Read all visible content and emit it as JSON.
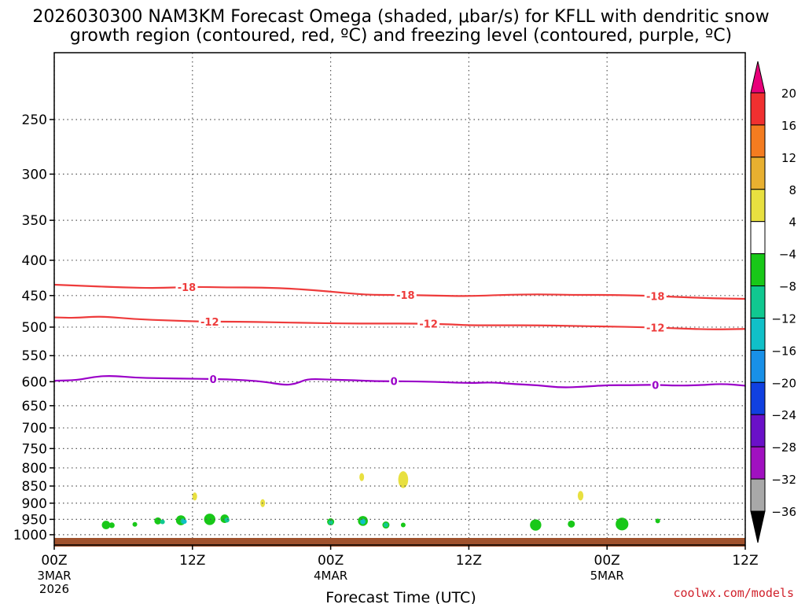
{
  "title": {
    "line1": "2026030300 NAM3KM Forecast Omega (shaded, μbar/s) for KFLL with dendritic snow",
    "line2": "growth region (contoured, red, ºC) and freezing level (contoured, purple, ºC)"
  },
  "credit": "coolwx.com/models",
  "colors": {
    "snow_growth_contour": "#ee3b3b",
    "freezing_level_contour": "#9a00c8",
    "ground": "#a0522d",
    "grid": "#555555"
  },
  "chart_data": {
    "type": "heatmap",
    "title": "2026030300 NAM3KM Forecast Omega (shaded, μbar/s) for KFLL with dendritic snow growth region (contoured, red, ºC) and freezing level (contoured, purple, ºC)",
    "xlabel": "Forecast Time (UTC)",
    "ylabel": "",
    "x_unit": "forecast hour",
    "x_range": [
      0,
      60
    ],
    "x_ticks": [
      {
        "hour": 0,
        "label": "00Z",
        "sub": [
          "3MAR",
          "2026"
        ]
      },
      {
        "hour": 12,
        "label": "12Z",
        "sub": []
      },
      {
        "hour": 24,
        "label": "00Z",
        "sub": [
          "4MAR"
        ]
      },
      {
        "hour": 36,
        "label": "12Z",
        "sub": []
      },
      {
        "hour": 48,
        "label": "00Z",
        "sub": [
          "5MAR"
        ]
      },
      {
        "hour": 60,
        "label": "12Z",
        "sub": []
      }
    ],
    "y_unit": "hPa",
    "y_scale": "log",
    "y_range": [
      1035,
      200
    ],
    "y_ticks": [
      250,
      300,
      350,
      400,
      450,
      500,
      550,
      600,
      650,
      700,
      750,
      800,
      850,
      900,
      950,
      1000
    ],
    "grid": true,
    "colorbar": {
      "unit": "μbar/s",
      "labels": [
        20,
        16,
        12,
        8,
        4,
        -4,
        -8,
        -12,
        -16,
        -20,
        -24,
        -28,
        -32,
        -36
      ],
      "bins": [
        {
          "range": [
            20,
            null
          ],
          "color": "#e8007a"
        },
        {
          "range": [
            16,
            20
          ],
          "color": "#f03030"
        },
        {
          "range": [
            12,
            16
          ],
          "color": "#f47c20"
        },
        {
          "range": [
            8,
            12
          ],
          "color": "#e8b030"
        },
        {
          "range": [
            4,
            8
          ],
          "color": "#e8e040"
        },
        {
          "range": [
            -4,
            4
          ],
          "color": "#ffffff"
        },
        {
          "range": [
            -8,
            -4
          ],
          "color": "#18c818"
        },
        {
          "range": [
            -12,
            -8
          ],
          "color": "#10c890"
        },
        {
          "range": [
            -16,
            -12
          ],
          "color": "#10c0c8"
        },
        {
          "range": [
            -20,
            -16
          ],
          "color": "#1890e8"
        },
        {
          "range": [
            -24,
            -20
          ],
          "color": "#1040e0"
        },
        {
          "range": [
            -28,
            -24
          ],
          "color": "#6a10c8"
        },
        {
          "range": [
            -32,
            -28
          ],
          "color": "#a010c0"
        },
        {
          "range": [
            -36,
            -32
          ],
          "color": "#a8a8a8"
        },
        {
          "range": [
            null,
            -36
          ],
          "color": "#000000"
        }
      ]
    },
    "contours": [
      {
        "name": "-18",
        "label": "-18",
        "color": "#ee3b3b",
        "label_hours": [
          11.5,
          30.5,
          52.2
        ],
        "points": [
          [
            0,
            434
          ],
          [
            3,
            436
          ],
          [
            6,
            438
          ],
          [
            9,
            439
          ],
          [
            12,
            437
          ],
          [
            15,
            438
          ],
          [
            18,
            438
          ],
          [
            21,
            440
          ],
          [
            24,
            444
          ],
          [
            27,
            449
          ],
          [
            30,
            449
          ],
          [
            33,
            450
          ],
          [
            36,
            451
          ],
          [
            39,
            449
          ],
          [
            42,
            448
          ],
          [
            45,
            449
          ],
          [
            48,
            449
          ],
          [
            51,
            450
          ],
          [
            54,
            452
          ],
          [
            57,
            454
          ],
          [
            60,
            455
          ]
        ]
      },
      {
        "name": "-12",
        "label": "-12",
        "color": "#ee3b3b",
        "label_hours": [
          13.5,
          32.5,
          52.2
        ],
        "points": [
          [
            0,
            484
          ],
          [
            2,
            485
          ],
          [
            4,
            482
          ],
          [
            7,
            487
          ],
          [
            10,
            489
          ],
          [
            13,
            491
          ],
          [
            16,
            491
          ],
          [
            19,
            492
          ],
          [
            22,
            493
          ],
          [
            25,
            494
          ],
          [
            28,
            494
          ],
          [
            31,
            494
          ],
          [
            34,
            495
          ],
          [
            36,
            497
          ],
          [
            39,
            497
          ],
          [
            42,
            497
          ],
          [
            45,
            498
          ],
          [
            48,
            499
          ],
          [
            51,
            500
          ],
          [
            54,
            502
          ],
          [
            57,
            504
          ],
          [
            60,
            503
          ]
        ]
      },
      {
        "name": "0",
        "label": "0",
        "color": "#9a00c8",
        "label_hours": [
          13.8,
          29.5,
          52.2
        ],
        "points": [
          [
            0,
            598
          ],
          [
            2,
            597
          ],
          [
            3.5,
            590
          ],
          [
            5,
            588
          ],
          [
            7,
            592
          ],
          [
            9,
            593
          ],
          [
            12,
            594
          ],
          [
            15,
            595
          ],
          [
            18,
            599
          ],
          [
            20,
            607
          ],
          [
            21,
            604
          ],
          [
            22,
            594
          ],
          [
            24,
            596
          ],
          [
            26,
            597
          ],
          [
            28,
            599
          ],
          [
            30,
            599
          ],
          [
            33,
            600
          ],
          [
            36,
            603
          ],
          [
            38,
            601
          ],
          [
            40,
            605
          ],
          [
            42,
            607
          ],
          [
            44,
            612
          ],
          [
            46,
            610
          ],
          [
            48,
            607
          ],
          [
            50,
            607
          ],
          [
            52,
            606
          ],
          [
            54,
            608
          ],
          [
            56,
            607
          ],
          [
            58,
            604
          ],
          [
            60,
            608
          ]
        ]
      }
    ],
    "omega_cells": [
      {
        "hour": 4.5,
        "p": 968,
        "dh": 0.6,
        "value": -6
      },
      {
        "hour": 5.0,
        "p": 969,
        "dh": 0.4,
        "value": -6
      },
      {
        "hour": 7.0,
        "p": 966,
        "dh": 0.3,
        "value": -6
      },
      {
        "hour": 9.0,
        "p": 955,
        "dh": 0.5,
        "value": -6
      },
      {
        "hour": 9.4,
        "p": 958,
        "dh": 0.3,
        "value": -10
      },
      {
        "hour": 11.0,
        "p": 953,
        "dh": 0.7,
        "value": -6
      },
      {
        "hour": 11.2,
        "p": 956,
        "dh": 0.4,
        "value": -10
      },
      {
        "hour": 11.3,
        "p": 957,
        "dh": 0.25,
        "value": -14
      },
      {
        "hour": 12.2,
        "p": 880,
        "dh": 0.3,
        "value": 6
      },
      {
        "hour": 13.5,
        "p": 950,
        "dh": 0.8,
        "value": -6
      },
      {
        "hour": 14.8,
        "p": 948,
        "dh": 0.6,
        "value": -6
      },
      {
        "hour": 15.0,
        "p": 952,
        "dh": 0.35,
        "value": -10
      },
      {
        "hour": 18.1,
        "p": 900,
        "dh": 0.3,
        "value": 6
      },
      {
        "hour": 24.0,
        "p": 958,
        "dh": 0.5,
        "value": -6
      },
      {
        "hour": 24.0,
        "p": 960,
        "dh": 0.25,
        "value": -10
      },
      {
        "hour": 26.7,
        "p": 825,
        "dh": 0.3,
        "value": 6
      },
      {
        "hour": 26.8,
        "p": 955,
        "dh": 0.7,
        "value": -6
      },
      {
        "hour": 26.8,
        "p": 957,
        "dh": 0.4,
        "value": -10
      },
      {
        "hour": 26.8,
        "p": 958,
        "dh": 0.2,
        "value": -14
      },
      {
        "hour": 28.8,
        "p": 968,
        "dh": 0.5,
        "value": -6
      },
      {
        "hour": 28.8,
        "p": 968,
        "dh": 0.25,
        "value": -10
      },
      {
        "hour": 30.3,
        "p": 832,
        "dh": 0.7,
        "value": 6
      },
      {
        "hour": 30.3,
        "p": 968,
        "dh": 0.3,
        "value": -6
      },
      {
        "hour": 41.8,
        "p": 968,
        "dh": 0.8,
        "value": -6
      },
      {
        "hour": 44.9,
        "p": 965,
        "dh": 0.5,
        "value": -6
      },
      {
        "hour": 45.7,
        "p": 878,
        "dh": 0.4,
        "value": 6
      },
      {
        "hour": 49.3,
        "p": 965,
        "dh": 0.9,
        "value": -6
      },
      {
        "hour": 52.4,
        "p": 955,
        "dh": 0.3,
        "value": -6
      }
    ]
  }
}
